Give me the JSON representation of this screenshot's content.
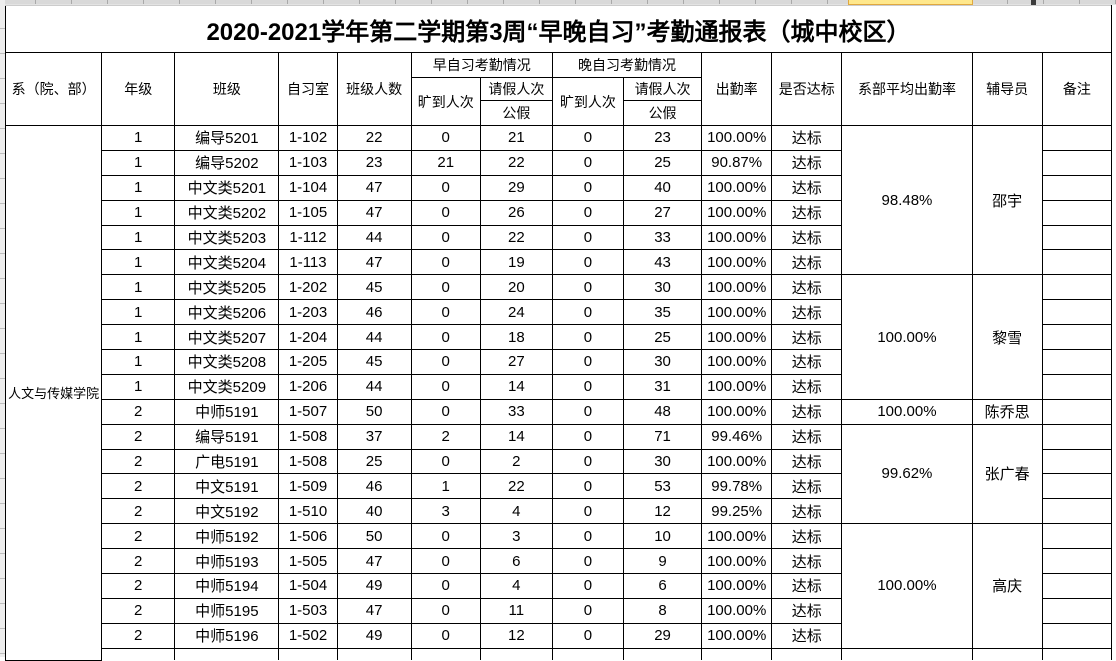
{
  "title": "2020-2021学年第二学期第3周“早晚自习”考勤通报表（城中校区）",
  "header": {
    "dept": "系（院、部）",
    "grade": "年级",
    "class": "班级",
    "room": "自习室",
    "size": "班级人数",
    "morning": "早自习考勤情况",
    "evening": "晚自习考勤情况",
    "absent": "旷到人次",
    "leave": "请假人次",
    "public_leave": "公假",
    "rate": "出勤率",
    "standard": "是否达标",
    "avg": "系部平均出勤率",
    "counselor": "辅导员",
    "remark": "备注"
  },
  "department": "人文与传媒学院",
  "rows": [
    [
      "1",
      "编导5201",
      "1-102",
      "22",
      "0",
      "21",
      "0",
      "23",
      "100.00%",
      "达标"
    ],
    [
      "1",
      "编导5202",
      "1-103",
      "23",
      "21",
      "22",
      "0",
      "25",
      "90.87%",
      "达标"
    ],
    [
      "1",
      "中文类5201",
      "1-104",
      "47",
      "0",
      "29",
      "0",
      "40",
      "100.00%",
      "达标"
    ],
    [
      "1",
      "中文类5202",
      "1-105",
      "47",
      "0",
      "26",
      "0",
      "27",
      "100.00%",
      "达标"
    ],
    [
      "1",
      "中文类5203",
      "1-112",
      "44",
      "0",
      "22",
      "0",
      "33",
      "100.00%",
      "达标"
    ],
    [
      "1",
      "中文类5204",
      "1-113",
      "47",
      "0",
      "19",
      "0",
      "43",
      "100.00%",
      "达标"
    ],
    [
      "1",
      "中文类5205",
      "1-202",
      "45",
      "0",
      "20",
      "0",
      "30",
      "100.00%",
      "达标"
    ],
    [
      "1",
      "中文类5206",
      "1-203",
      "46",
      "0",
      "24",
      "0",
      "35",
      "100.00%",
      "达标"
    ],
    [
      "1",
      "中文类5207",
      "1-204",
      "44",
      "0",
      "18",
      "0",
      "25",
      "100.00%",
      "达标"
    ],
    [
      "1",
      "中文类5208",
      "1-205",
      "45",
      "0",
      "27",
      "0",
      "30",
      "100.00%",
      "达标"
    ],
    [
      "1",
      "中文类5209",
      "1-206",
      "44",
      "0",
      "14",
      "0",
      "31",
      "100.00%",
      "达标"
    ],
    [
      "2",
      "中师5191",
      "1-507",
      "50",
      "0",
      "33",
      "0",
      "48",
      "100.00%",
      "达标"
    ],
    [
      "2",
      "编导5191",
      "1-508",
      "37",
      "2",
      "14",
      "0",
      "71",
      "99.46%",
      "达标"
    ],
    [
      "2",
      "广电5191",
      "1-508",
      "25",
      "0",
      "2",
      "0",
      "30",
      "100.00%",
      "达标"
    ],
    [
      "2",
      "中文5191",
      "1-509",
      "46",
      "1",
      "22",
      "0",
      "53",
      "99.78%",
      "达标"
    ],
    [
      "2",
      "中文5192",
      "1-510",
      "40",
      "3",
      "4",
      "0",
      "12",
      "99.25%",
      "达标"
    ],
    [
      "2",
      "中师5192",
      "1-506",
      "50",
      "0",
      "3",
      "0",
      "10",
      "100.00%",
      "达标"
    ],
    [
      "2",
      "中师5193",
      "1-505",
      "47",
      "0",
      "6",
      "0",
      "9",
      "100.00%",
      "达标"
    ],
    [
      "2",
      "中师5194",
      "1-504",
      "49",
      "0",
      "4",
      "0",
      "6",
      "100.00%",
      "达标"
    ],
    [
      "2",
      "中师5195",
      "1-503",
      "47",
      "0",
      "11",
      "0",
      "8",
      "100.00%",
      "达标"
    ],
    [
      "2",
      "中师5196",
      "1-502",
      "49",
      "0",
      "12",
      "0",
      "29",
      "100.00%",
      "达标"
    ]
  ],
  "groups": [
    {
      "span": 6,
      "avg": "98.48%",
      "counselor": "邵宇"
    },
    {
      "span": 5,
      "avg": "100.00%",
      "counselor": "黎雪"
    },
    {
      "span": 1,
      "avg": "100.00%",
      "counselor": "陈乔思"
    },
    {
      "span": 4,
      "avg": "99.62%",
      "counselor": "张广春"
    },
    {
      "span": 5,
      "avg": "100.00%",
      "counselor": "高庆"
    }
  ],
  "chrome": {
    "highlight_color": "#ffe88c"
  }
}
